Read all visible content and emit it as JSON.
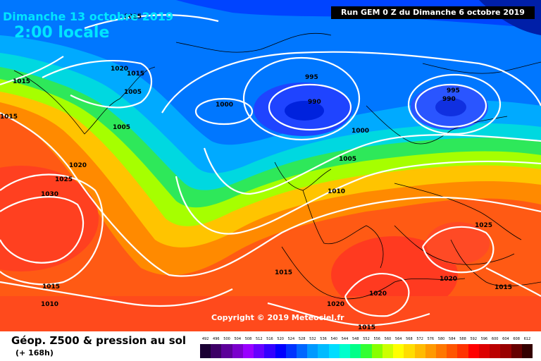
{
  "header": {
    "date": "Dimanche 13 octobre 2019",
    "time": "2:00 locale",
    "run": "Run GEM 0 Z du Dimanche 6 octobre 2019"
  },
  "copyright": "Copyright © 2019 Meteociel.fr",
  "legend": {
    "title": "Géop. Z500 & pression au sol",
    "subtitle": "(+ 168h)",
    "scale": [
      {
        "label": "492",
        "color": "#1a0033"
      },
      {
        "label": "496",
        "color": "#3d0066"
      },
      {
        "label": "500",
        "color": "#5c0099"
      },
      {
        "label": "504",
        "color": "#7a00cc"
      },
      {
        "label": "508",
        "color": "#9900ff"
      },
      {
        "label": "512",
        "color": "#6600ff"
      },
      {
        "label": "516",
        "color": "#3300ff"
      },
      {
        "label": "520",
        "color": "#0000ff"
      },
      {
        "label": "524",
        "color": "#0033ff"
      },
      {
        "label": "528",
        "color": "#0066ff"
      },
      {
        "label": "532",
        "color": "#0099ff"
      },
      {
        "label": "536",
        "color": "#00bbff"
      },
      {
        "label": "540",
        "color": "#00ddff"
      },
      {
        "label": "544",
        "color": "#00ffcc"
      },
      {
        "label": "548",
        "color": "#00ff88"
      },
      {
        "label": "552",
        "color": "#33ff33"
      },
      {
        "label": "556",
        "color": "#88ff00"
      },
      {
        "label": "560",
        "color": "#ccff00"
      },
      {
        "label": "564",
        "color": "#ffff00"
      },
      {
        "label": "568",
        "color": "#ffdd00"
      },
      {
        "label": "572",
        "color": "#ffbb00"
      },
      {
        "label": "576",
        "color": "#ff9900"
      },
      {
        "label": "580",
        "color": "#ff7700"
      },
      {
        "label": "584",
        "color": "#ff5500"
      },
      {
        "label": "588",
        "color": "#ff3300"
      },
      {
        "label": "592",
        "color": "#ff0000"
      },
      {
        "label": "596",
        "color": "#dd0000"
      },
      {
        "label": "600",
        "color": "#bb0000"
      },
      {
        "label": "604",
        "color": "#990000"
      },
      {
        "label": "608",
        "color": "#660000"
      },
      {
        "label": "612",
        "color": "#330000"
      }
    ]
  },
  "isobar_labels": [
    "1015",
    "1020",
    "1015",
    "1015",
    "1005",
    "1005",
    "1015",
    "1020",
    "1025",
    "1030",
    "1000",
    "995",
    "990",
    "995",
    "990",
    "1000",
    "1005",
    "1010",
    "1015",
    "1025",
    "1020",
    "1015",
    "1010",
    "1020",
    "1020",
    "1015",
    "1015"
  ],
  "colors": {
    "title_text": "#00e5ff",
    "run_box_bg": "#000000",
    "isobar": "#ffffff"
  }
}
